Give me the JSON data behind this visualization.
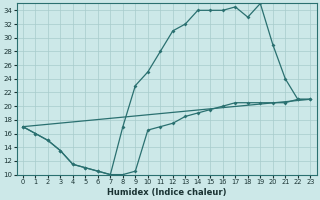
{
  "xlabel": "Humidex (Indice chaleur)",
  "xlim": [
    -0.5,
    23.5
  ],
  "ylim": [
    10,
    35
  ],
  "yticks": [
    10,
    12,
    14,
    16,
    18,
    20,
    22,
    24,
    26,
    28,
    30,
    32,
    34
  ],
  "xticks": [
    0,
    1,
    2,
    3,
    4,
    5,
    6,
    7,
    8,
    9,
    10,
    11,
    12,
    13,
    14,
    15,
    16,
    17,
    18,
    19,
    20,
    21,
    22,
    23
  ],
  "bg_color": "#cce8e8",
  "line_color": "#2a7070",
  "grid_color": "#a8cccc",
  "line1_x": [
    0,
    1,
    2,
    3,
    4,
    5,
    6,
    7,
    8,
    9,
    10,
    11,
    12,
    13,
    14,
    15,
    16,
    17,
    18,
    19,
    20,
    21,
    22,
    23
  ],
  "line1_y": [
    17,
    16,
    15,
    13.5,
    11.5,
    11,
    10.5,
    10,
    10,
    10.5,
    16.5,
    17,
    17.5,
    18.5,
    19,
    19.5,
    20,
    20.5,
    20.5,
    20.5,
    20.5,
    20.5,
    21,
    21
  ],
  "line2_x": [
    0,
    1,
    2,
    3,
    4,
    5,
    6,
    7,
    8,
    9,
    10,
    11,
    12,
    13,
    14,
    15,
    16,
    17,
    18,
    19,
    20,
    21,
    22,
    23
  ],
  "line2_y": [
    17,
    16,
    15,
    13.5,
    11.5,
    11,
    10.5,
    10,
    17,
    23,
    25,
    28,
    31,
    32,
    34,
    34,
    34,
    34.5,
    33,
    35,
    29,
    24,
    21,
    21
  ],
  "line3_x": [
    0,
    23
  ],
  "line3_y": [
    17,
    21
  ]
}
